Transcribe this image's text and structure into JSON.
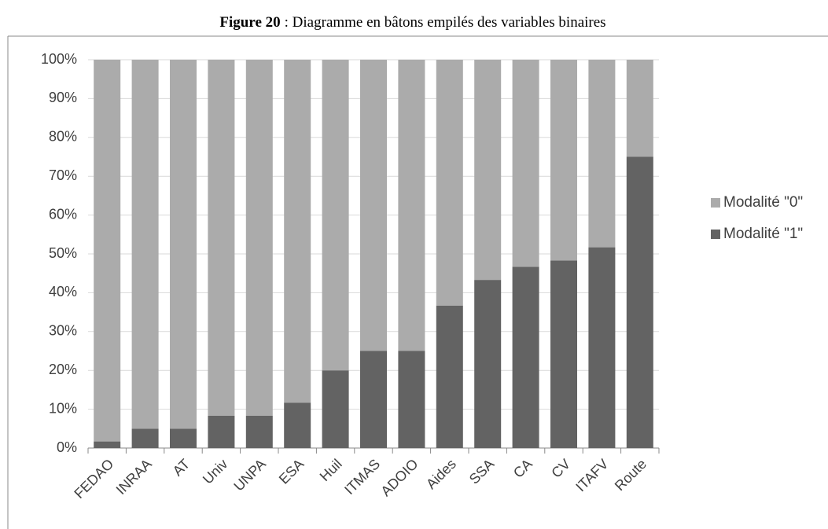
{
  "chart_data": {
    "type": "bar",
    "stacked": true,
    "title_prefix": "Figure 20",
    "title": ": Diagramme en bâtons empilés des variables binaires",
    "categories": [
      "FEDAO",
      "INRAA",
      "AT",
      "Univ",
      "UNPA",
      "ESA",
      "Huil",
      "ITMAS",
      "ADOIO",
      "Aides",
      "SSA",
      "CA",
      "CV",
      "ITAFV",
      "Route"
    ],
    "series": [
      {
        "name": "Modalité \"1\"",
        "color": "#636363",
        "values": [
          1.7,
          5,
          5,
          8.3,
          8.3,
          11.7,
          20,
          25,
          25,
          36.7,
          43.3,
          46.7,
          48.3,
          51.7,
          75
        ]
      },
      {
        "name": "Modalité \"0\"",
        "color": "#ababab",
        "values": [
          98.3,
          95,
          95,
          91.7,
          91.7,
          88.3,
          80,
          75,
          75,
          63.3,
          56.7,
          53.3,
          51.7,
          48.3,
          25
        ]
      }
    ],
    "ylim": [
      0,
      100
    ],
    "yticks": [
      {
        "value": 0,
        "label": "0%"
      },
      {
        "value": 10,
        "label": "10%"
      },
      {
        "value": 20,
        "label": "20%"
      },
      {
        "value": 30,
        "label": "30%"
      },
      {
        "value": 40,
        "label": "40%"
      },
      {
        "value": 50,
        "label": "50%"
      },
      {
        "value": 60,
        "label": "60%"
      },
      {
        "value": 70,
        "label": "70%"
      },
      {
        "value": 80,
        "label": "80%"
      },
      {
        "value": 90,
        "label": "90%"
      },
      {
        "value": 100,
        "label": "100%"
      }
    ],
    "grid": true,
    "legend": "right"
  }
}
